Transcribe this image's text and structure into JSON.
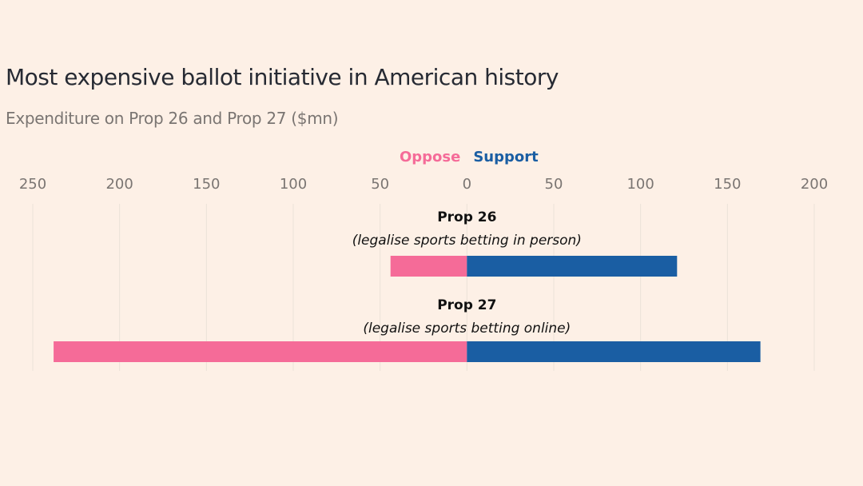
{
  "chart_data": {
    "type": "bar",
    "orientation": "horizontal-diverging",
    "title": "Most expensive ballot initiative in American history",
    "subtitle": "Expenditure on Prop 26 and Prop 27 ($mn)",
    "categories": [
      {
        "name": "Prop 26",
        "description": "(legalise sports betting in person)"
      },
      {
        "name": "Prop 27",
        "description": "(legalise sports betting online)"
      }
    ],
    "series": [
      {
        "name": "Oppose",
        "color": "#f56b98",
        "values": [
          44,
          238
        ]
      },
      {
        "name": "Support",
        "color": "#1a5ea3",
        "values": [
          121,
          169
        ]
      }
    ],
    "xlim": [
      -250,
      200
    ],
    "xticks": [
      -250,
      -200,
      -150,
      -100,
      -50,
      0,
      50,
      100,
      150,
      200
    ],
    "xtick_labels": [
      "250",
      "200",
      "150",
      "100",
      "50",
      "0",
      "50",
      "100",
      "150",
      "200"
    ],
    "grid": true,
    "legend_position": "top-center"
  }
}
